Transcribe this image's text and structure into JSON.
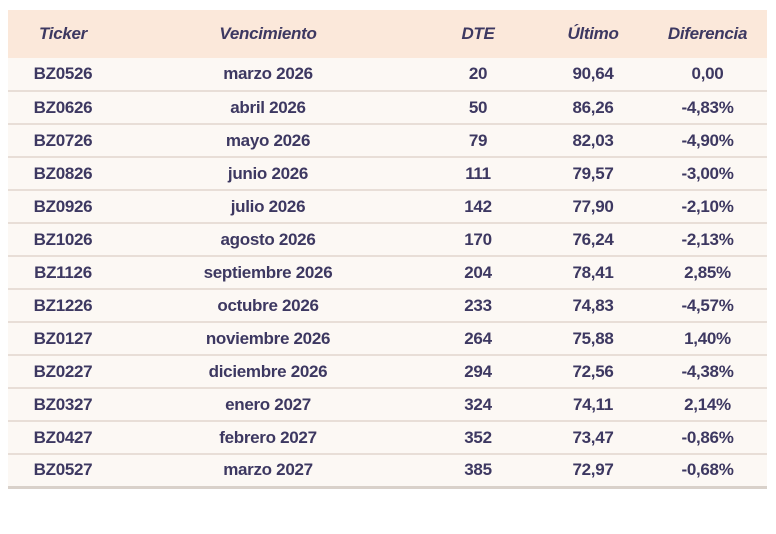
{
  "colors": {
    "header_bg": "#fbe8da",
    "row_bg": "#fcf8f4",
    "divider": "#e8ded7",
    "bottom_border": "#d9d1ca",
    "text": "#3d3861",
    "page_bg": "#ffffff"
  },
  "chart_data": {
    "type": "table",
    "title": "",
    "columns": [
      "Ticker",
      "Vencimiento",
      "DTE",
      "Último",
      "Diferencia"
    ],
    "rows": [
      [
        "BZ0526",
        "marzo 2026",
        "20",
        "90,64",
        "0,00"
      ],
      [
        "BZ0626",
        "abril 2026",
        "50",
        "86,26",
        "-4,83%"
      ],
      [
        "BZ0726",
        "mayo 2026",
        "79",
        "82,03",
        "-4,90%"
      ],
      [
        "BZ0826",
        "junio 2026",
        "111",
        "79,57",
        "-3,00%"
      ],
      [
        "BZ0926",
        "julio 2026",
        "142",
        "77,90",
        "-2,10%"
      ],
      [
        "BZ1026",
        "agosto 2026",
        "170",
        "76,24",
        "-2,13%"
      ],
      [
        "BZ1126",
        "septiembre 2026",
        "204",
        "78,41",
        "2,85%"
      ],
      [
        "BZ1226",
        "octubre 2026",
        "233",
        "74,83",
        "-4,57%"
      ],
      [
        "BZ0127",
        "noviembre 2026",
        "264",
        "75,88",
        "1,40%"
      ],
      [
        "BZ0227",
        "diciembre 2026",
        "294",
        "72,56",
        "-4,38%"
      ],
      [
        "BZ0327",
        "enero 2027",
        "324",
        "74,11",
        "2,14%"
      ],
      [
        "BZ0427",
        "febrero 2027",
        "352",
        "73,47",
        "-0,86%"
      ],
      [
        "BZ0527",
        "marzo 2027",
        "385",
        "72,97",
        "-0,68%"
      ]
    ]
  },
  "table": {
    "column_keys": [
      "ticker",
      "vencimiento",
      "dte",
      "ultimo",
      "diferencia"
    ]
  }
}
